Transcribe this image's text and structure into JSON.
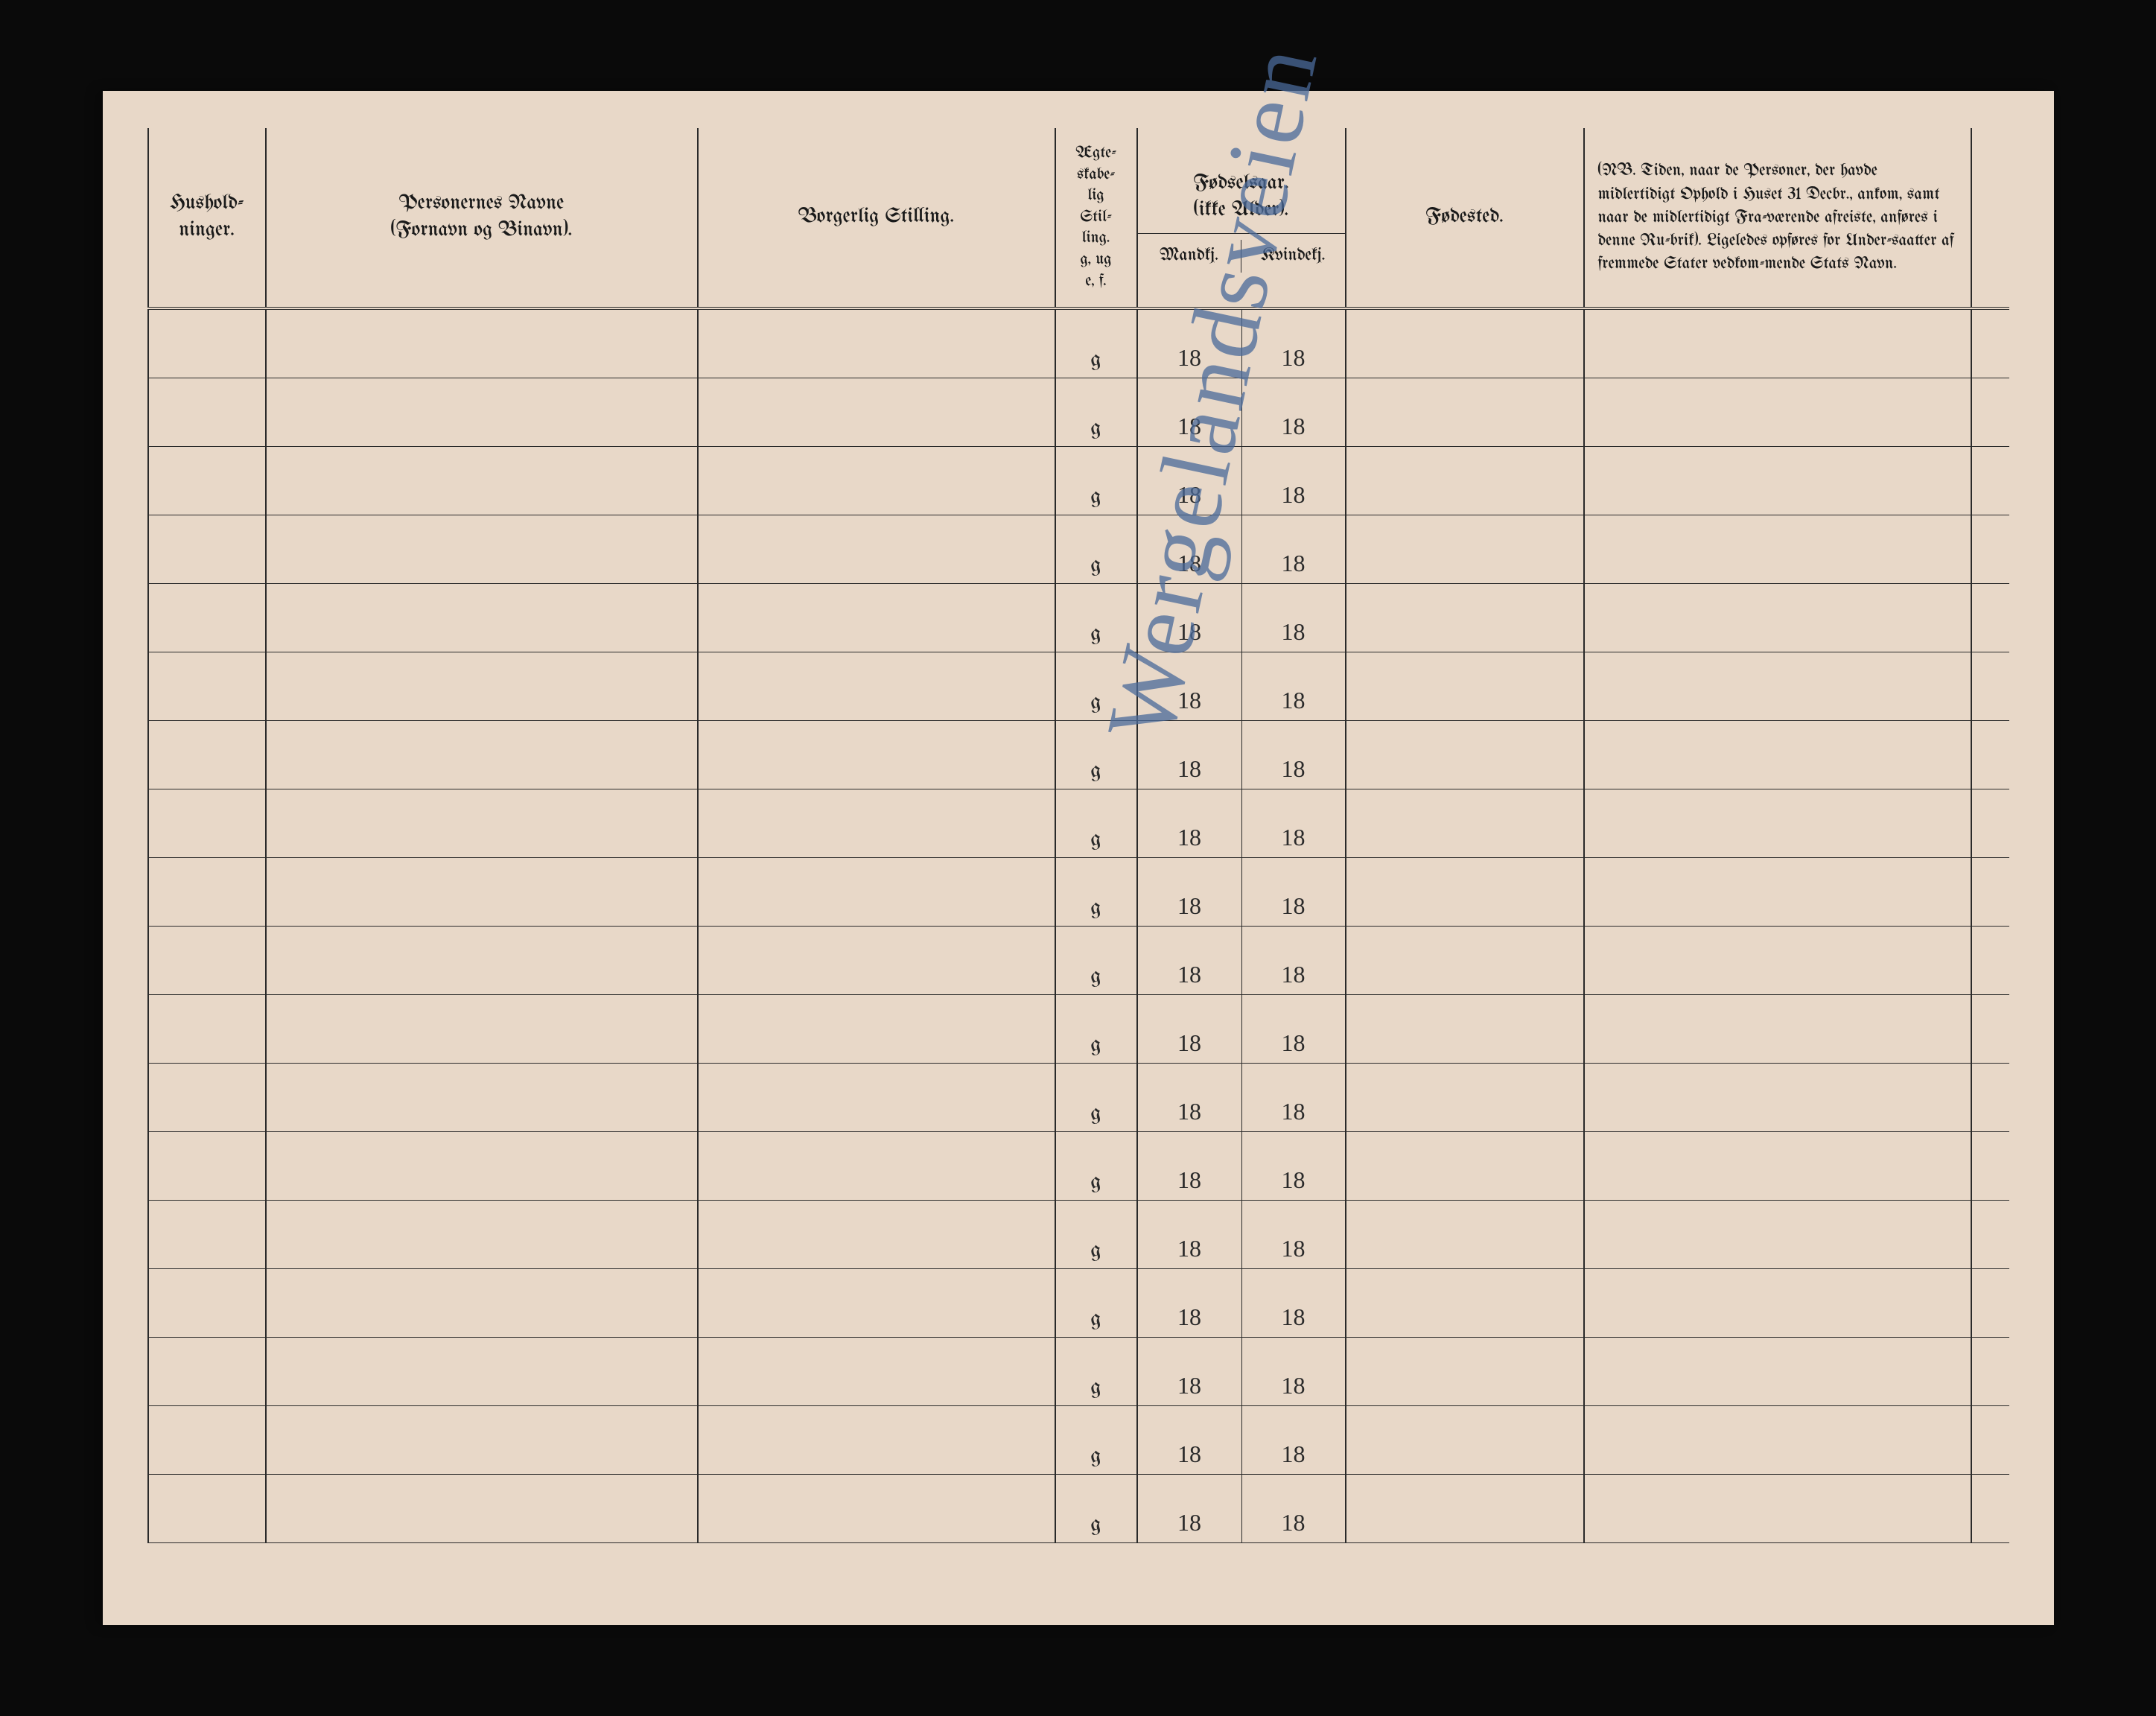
{
  "headers": {
    "hushold": "Hushold-\nninger.",
    "navne_title": "Personernes Navne",
    "navne_subtitle": "(Fornavn og Binavn).",
    "stilling": "Borgerlig Stilling.",
    "egteskab": "Ægte-\nskabe-\nlig\nStil-\nling.\ng, ug\ne, f.",
    "fodselsaar_title": "Fødselsaar.",
    "fodselsaar_subtitle": "(ikke Alder).",
    "mandkj": "Mandkj.",
    "kvindekj": "Kvindekj.",
    "fodested": "Fødested.",
    "nb_text": "(NB. Tiden, naar de Personer, der havde midlertidigt Ophold i Huset 31 Decbr., ankom, samt naar de midlertidigt Fra-værende afreiste, anføres i denne Ru-brik). Ligeledes opføres for Under-saatter af fremmede Stater vedkom-mende Stats Navn."
  },
  "handwriting_text": "Wergelandsveien",
  "rows": [
    {
      "egteskab": "g",
      "mandkj": "18",
      "kvindekj": "18"
    },
    {
      "egteskab": "g",
      "mandkj": "18",
      "kvindekj": "18"
    },
    {
      "egteskab": "g",
      "mandkj": "18",
      "kvindekj": "18"
    },
    {
      "egteskab": "g",
      "mandkj": "18",
      "kvindekj": "18"
    },
    {
      "egteskab": "g",
      "mandkj": "18",
      "kvindekj": "18"
    },
    {
      "egteskab": "g",
      "mandkj": "18",
      "kvindekj": "18"
    },
    {
      "egteskab": "g",
      "mandkj": "18",
      "kvindekj": "18"
    },
    {
      "egteskab": "g",
      "mandkj": "18",
      "kvindekj": "18"
    },
    {
      "egteskab": "g",
      "mandkj": "18",
      "kvindekj": "18"
    },
    {
      "egteskab": "g",
      "mandkj": "18",
      "kvindekj": "18"
    },
    {
      "egteskab": "g",
      "mandkj": "18",
      "kvindekj": "18"
    },
    {
      "egteskab": "g",
      "mandkj": "18",
      "kvindekj": "18"
    },
    {
      "egteskab": "g",
      "mandkj": "18",
      "kvindekj": "18"
    },
    {
      "egteskab": "g",
      "mandkj": "18",
      "kvindekj": "18"
    },
    {
      "egteskab": "g",
      "mandkj": "18",
      "kvindekj": "18"
    },
    {
      "egteskab": "g",
      "mandkj": "18",
      "kvindekj": "18"
    },
    {
      "egteskab": "g",
      "mandkj": "18",
      "kvindekj": "18"
    },
    {
      "egteskab": "g",
      "mandkj": "18",
      "kvindekj": "18"
    }
  ],
  "colors": {
    "background": "#0a0a0a",
    "paper": "#e8d8c8",
    "ink": "#2a2a2a",
    "handwriting": "#4a6a9a"
  }
}
